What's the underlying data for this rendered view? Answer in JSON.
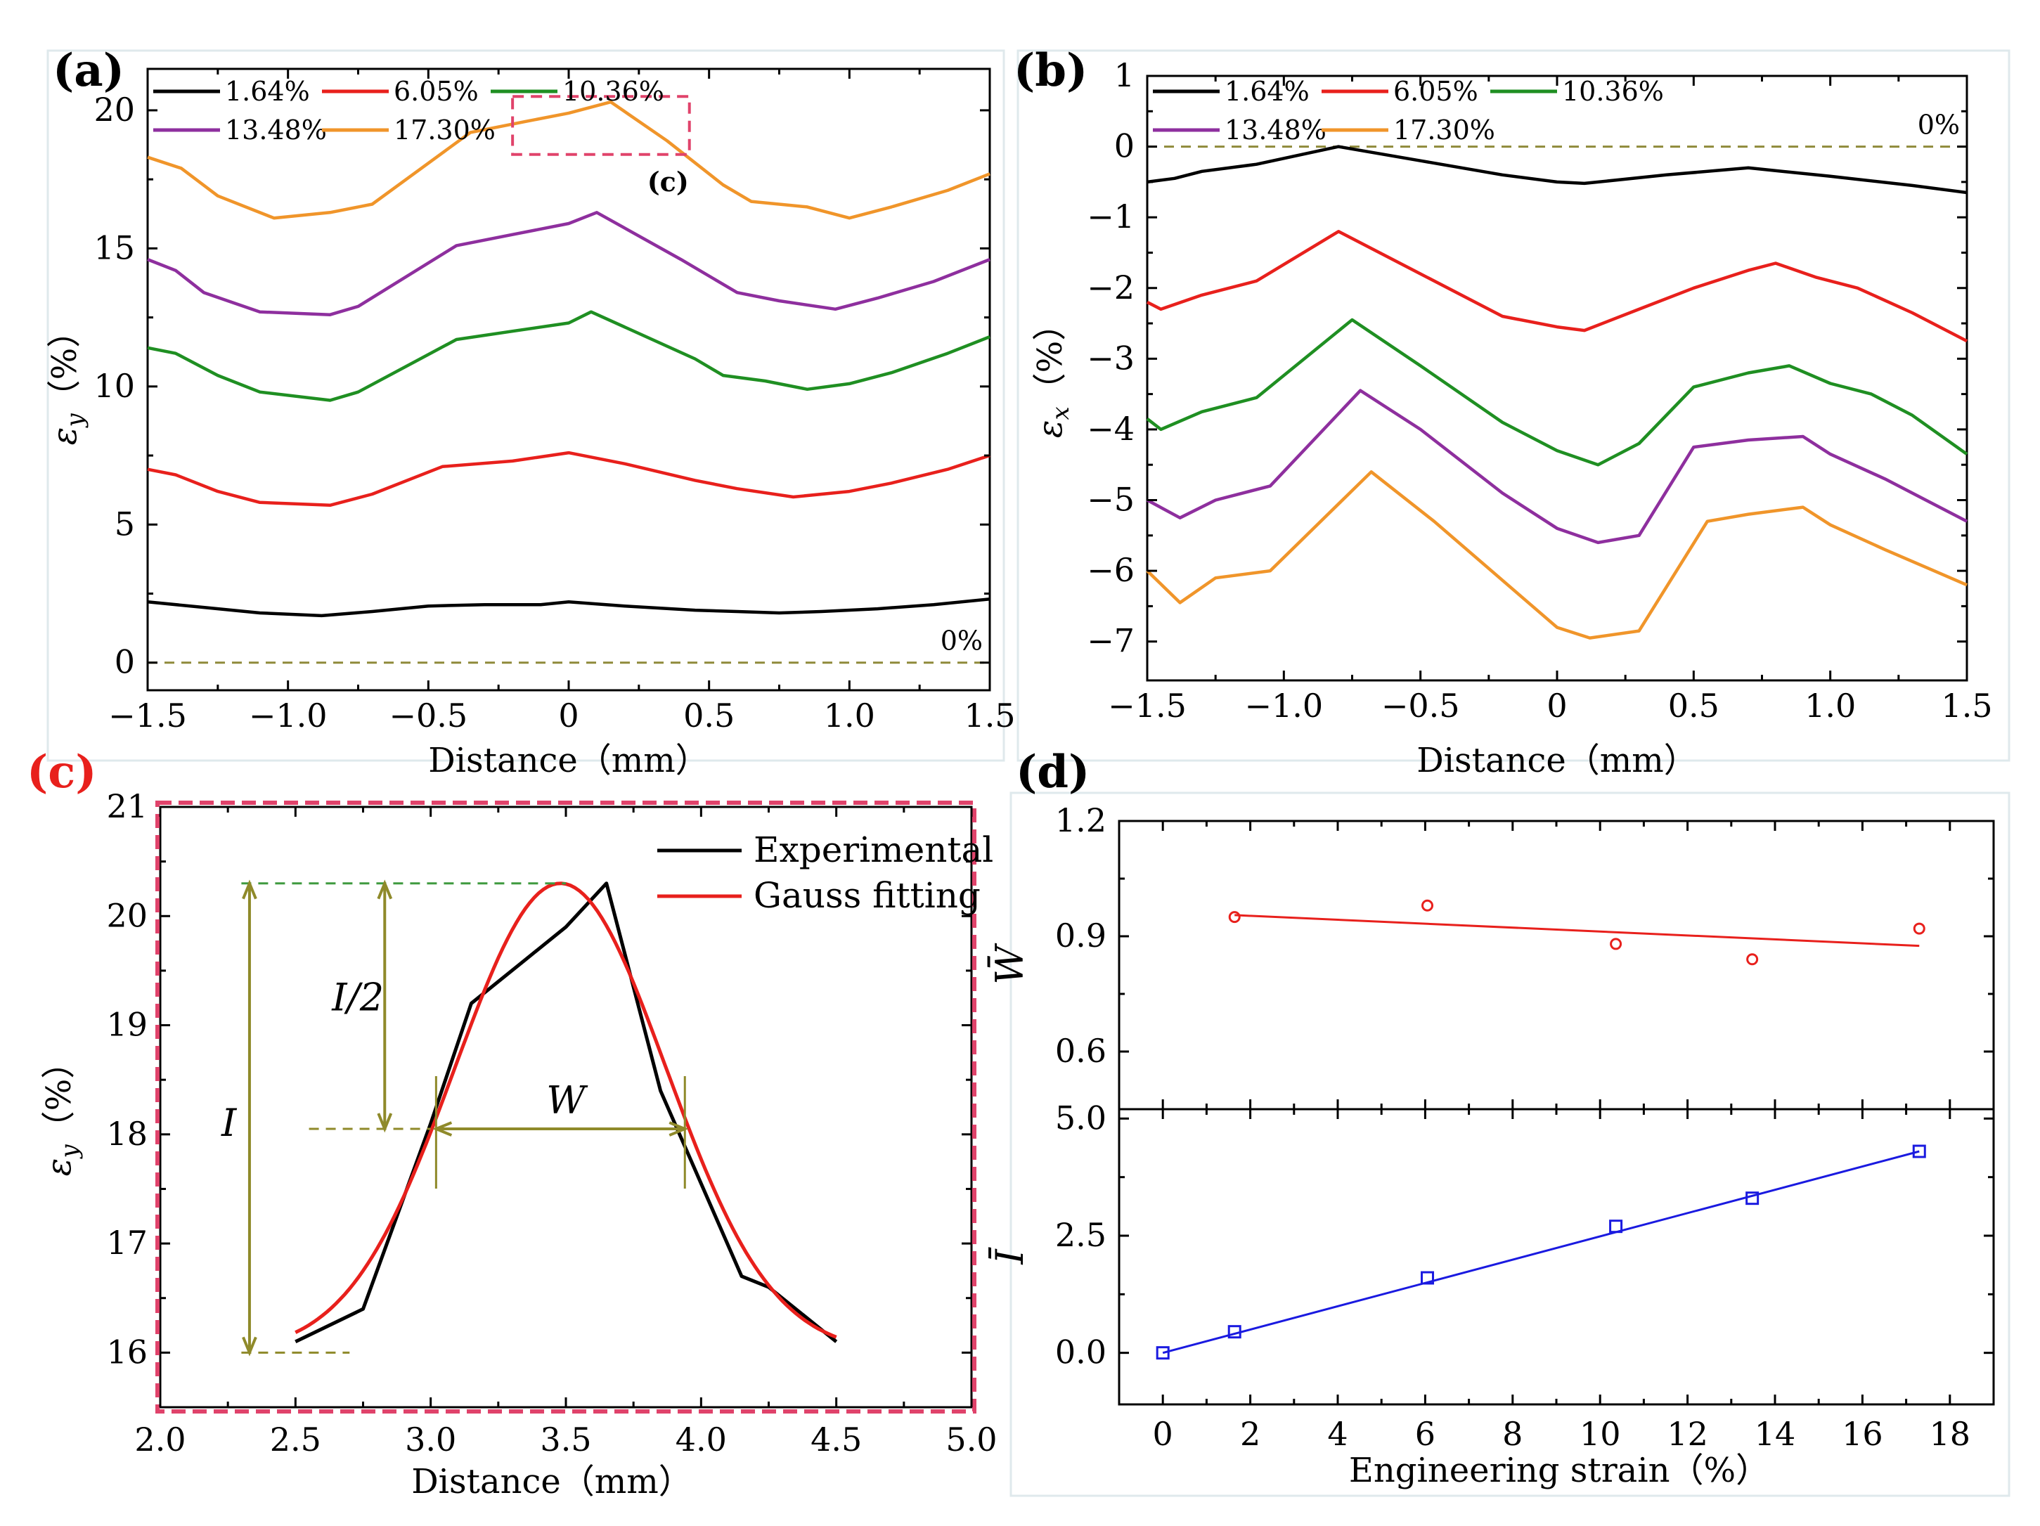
{
  "panels": {
    "a": {
      "label": "(a)"
    },
    "b": {
      "label": "(b)"
    },
    "c": {
      "label": "(c)"
    },
    "d": {
      "label": "(d)"
    }
  },
  "colors": {
    "s1": "#000000",
    "s2": "#e8201c",
    "s3": "#1f8f22",
    "s4": "#8e2f9e",
    "s5": "#f0952a",
    "zero_line": "#8f8a3a",
    "dashed_box": "#e0436b",
    "gauss": "#e8201c",
    "annotation": "#8f8a2a",
    "fit_w": "#e8201c",
    "fit_i": "#1a1ae0"
  },
  "chart_data": [
    {
      "id": "a",
      "type": "line",
      "xlabel": "Distance（mm）",
      "ylabel": "ε_y（%）",
      "xlim": [
        -1.5,
        1.5
      ],
      "ylim": [
        -1,
        21.5
      ],
      "xticks": [
        -1.5,
        -1.0,
        -0.5,
        0,
        0.5,
        1.0,
        1.5
      ],
      "xtick_labels": [
        "−1.5",
        "−1.0",
        "−0.5",
        "0",
        "0.5",
        "1.0",
        "1.5"
      ],
      "yticks": [
        0,
        5,
        10,
        15,
        20
      ],
      "ytick_labels": [
        "0",
        "5",
        "10",
        "15",
        "20"
      ],
      "reference_line": {
        "y": 0,
        "label": "0%"
      },
      "highlight_box": {
        "x": [
          -0.2,
          0.43
        ],
        "y": [
          18.4,
          20.5
        ],
        "label": "(c)"
      },
      "series": [
        {
          "name": "1.64%",
          "color_key": "s1",
          "x": [
            -1.5,
            -1.3,
            -1.1,
            -0.88,
            -0.7,
            -0.5,
            -0.3,
            -0.1,
            0,
            0.2,
            0.45,
            0.6,
            0.75,
            0.9,
            1.1,
            1.3,
            1.5
          ],
          "y": [
            2.2,
            2.0,
            1.8,
            1.7,
            1.85,
            2.05,
            2.1,
            2.1,
            2.2,
            2.05,
            1.9,
            1.85,
            1.8,
            1.85,
            1.95,
            2.1,
            2.3
          ]
        },
        {
          "name": "6.05%",
          "color_key": "s2",
          "x": [
            -1.5,
            -1.4,
            -1.25,
            -1.1,
            -0.85,
            -0.7,
            -0.45,
            -0.2,
            0,
            0.2,
            0.45,
            0.6,
            0.8,
            1.0,
            1.15,
            1.35,
            1.5
          ],
          "y": [
            7.0,
            6.8,
            6.2,
            5.8,
            5.7,
            6.1,
            7.1,
            7.3,
            7.6,
            7.2,
            6.6,
            6.3,
            6.0,
            6.2,
            6.5,
            7.0,
            7.5
          ]
        },
        {
          "name": "10.36%",
          "color_key": "s3",
          "x": [
            -1.5,
            -1.4,
            -1.25,
            -1.1,
            -0.85,
            -0.75,
            -0.4,
            -0.2,
            0,
            0.08,
            0.45,
            0.55,
            0.7,
            0.85,
            1.0,
            1.15,
            1.35,
            1.5
          ],
          "y": [
            11.4,
            11.2,
            10.4,
            9.8,
            9.5,
            9.8,
            11.7,
            12.0,
            12.3,
            12.7,
            11.0,
            10.4,
            10.2,
            9.9,
            10.1,
            10.5,
            11.2,
            11.8
          ]
        },
        {
          "name": "13.48%",
          "color_key": "s4",
          "x": [
            -1.5,
            -1.4,
            -1.3,
            -1.1,
            -0.85,
            -0.75,
            -0.4,
            -0.2,
            0,
            0.1,
            0.4,
            0.6,
            0.75,
            0.95,
            1.1,
            1.3,
            1.5
          ],
          "y": [
            14.6,
            14.2,
            13.4,
            12.7,
            12.6,
            12.9,
            15.1,
            15.5,
            15.9,
            16.3,
            14.6,
            13.4,
            13.1,
            12.8,
            13.2,
            13.8,
            14.6
          ]
        },
        {
          "name": "17.30%",
          "color_key": "s5",
          "x": [
            -1.5,
            -1.38,
            -1.25,
            -1.05,
            -0.85,
            -0.7,
            -0.35,
            -0.15,
            0,
            0.15,
            0.35,
            0.55,
            0.65,
            0.85,
            1.0,
            1.15,
            1.35,
            1.5
          ],
          "y": [
            18.3,
            17.9,
            16.9,
            16.1,
            16.3,
            16.6,
            19.2,
            19.6,
            19.9,
            20.3,
            18.9,
            17.3,
            16.7,
            16.5,
            16.1,
            16.5,
            17.1,
            17.7
          ]
        }
      ]
    },
    {
      "id": "b",
      "type": "line",
      "xlabel": "Distance（mm）",
      "ylabel": "ε_x（%）",
      "xlim": [
        -1.5,
        1.5
      ],
      "ylim": [
        -7.55,
        1
      ],
      "xticks": [
        -1.5,
        -1.0,
        -0.5,
        0,
        0.5,
        1.0,
        1.5
      ],
      "xtick_labels": [
        "−1.5",
        "−1.0",
        "−0.5",
        "0",
        "0.5",
        "1.0",
        "1.5"
      ],
      "yticks": [
        1,
        0,
        -1,
        -2,
        -3,
        -4,
        -5,
        -6,
        -7
      ],
      "ytick_labels": [
        "1",
        "0",
        "−1",
        "−2",
        "−3",
        "−4",
        "−5",
        "−6",
        "−7"
      ],
      "reference_line": {
        "y": 0,
        "label": "0%"
      },
      "series": [
        {
          "name": "1.64%",
          "color_key": "s1",
          "x": [
            -1.5,
            -1.4,
            -1.3,
            -1.1,
            -0.8,
            -0.5,
            -0.2,
            0,
            0.1,
            0.4,
            0.7,
            1.0,
            1.3,
            1.5
          ],
          "y": [
            -0.5,
            -0.45,
            -0.35,
            -0.25,
            0.0,
            -0.2,
            -0.4,
            -0.5,
            -0.52,
            -0.4,
            -0.3,
            -0.42,
            -0.55,
            -0.65
          ]
        },
        {
          "name": "6.05%",
          "color_key": "s2",
          "x": [
            -1.5,
            -1.45,
            -1.3,
            -1.1,
            -0.8,
            -0.5,
            -0.2,
            0,
            0.1,
            0.3,
            0.5,
            0.7,
            0.8,
            0.95,
            1.1,
            1.3,
            1.5
          ],
          "y": [
            -2.2,
            -2.3,
            -2.1,
            -1.9,
            -1.2,
            -1.8,
            -2.4,
            -2.55,
            -2.6,
            -2.3,
            -2.0,
            -1.75,
            -1.65,
            -1.85,
            -2.0,
            -2.35,
            -2.75
          ]
        },
        {
          "name": "10.36%",
          "color_key": "s3",
          "x": [
            -1.5,
            -1.45,
            -1.3,
            -1.1,
            -0.75,
            -0.5,
            -0.2,
            0,
            0.15,
            0.3,
            0.5,
            0.7,
            0.85,
            1.0,
            1.15,
            1.3,
            1.5
          ],
          "y": [
            -3.85,
            -4.0,
            -3.75,
            -3.55,
            -2.45,
            -3.1,
            -3.9,
            -4.3,
            -4.5,
            -4.2,
            -3.4,
            -3.2,
            -3.1,
            -3.35,
            -3.5,
            -3.8,
            -4.35
          ]
        },
        {
          "name": "13.48%",
          "color_key": "s4",
          "x": [
            -1.5,
            -1.38,
            -1.25,
            -1.05,
            -0.72,
            -0.5,
            -0.2,
            0,
            0.15,
            0.3,
            0.5,
            0.7,
            0.9,
            1.0,
            1.2,
            1.35,
            1.5
          ],
          "y": [
            -5.0,
            -5.25,
            -5.0,
            -4.8,
            -3.45,
            -4.0,
            -4.9,
            -5.4,
            -5.6,
            -5.5,
            -4.25,
            -4.15,
            -4.1,
            -4.35,
            -4.7,
            -5.0,
            -5.3
          ]
        },
        {
          "name": "17.30%",
          "color_key": "s5",
          "x": [
            -1.5,
            -1.38,
            -1.25,
            -1.05,
            -0.68,
            -0.45,
            -0.15,
            0,
            0.12,
            0.3,
            0.55,
            0.7,
            0.9,
            1.0,
            1.2,
            1.35,
            1.5
          ],
          "y": [
            -6.0,
            -6.45,
            -6.1,
            -6.0,
            -4.6,
            -5.3,
            -6.3,
            -6.8,
            -6.95,
            -6.85,
            -5.3,
            -5.2,
            -5.1,
            -5.35,
            -5.7,
            -5.95,
            -6.2
          ]
        }
      ]
    },
    {
      "id": "c",
      "type": "line",
      "xlabel": "Distance（mm）",
      "ylabel": "ε_y（%）",
      "xlim": [
        2.0,
        5.0
      ],
      "ylim": [
        15.5,
        21
      ],
      "xticks": [
        2.0,
        2.5,
        3.0,
        3.5,
        4.0,
        4.5,
        5.0
      ],
      "xtick_labels": [
        "2.0",
        "2.5",
        "3.0",
        "3.5",
        "4.0",
        "4.5",
        "5.0"
      ],
      "yticks": [
        16,
        17,
        18,
        19,
        20,
        21
      ],
      "ytick_labels": [
        "16",
        "17",
        "18",
        "19",
        "20",
        "21"
      ],
      "series": [
        {
          "name": "Experimental",
          "color_key": "s1",
          "x": [
            2.5,
            2.75,
            3.0,
            3.15,
            3.35,
            3.5,
            3.65,
            3.85,
            4.15,
            4.25,
            4.5
          ],
          "y": [
            16.1,
            16.4,
            18.1,
            19.2,
            19.6,
            19.9,
            20.3,
            18.4,
            16.7,
            16.6,
            16.1
          ]
        },
        {
          "name": "Gauss fitting",
          "color_key": "gauss",
          "gaussian": {
            "y0": 16.0,
            "amplitude": 4.3,
            "center": 3.48,
            "width_fwhm": 0.92,
            "x_from": 2.5,
            "x_to": 4.5
          }
        }
      ],
      "annotations": {
        "peak_y": 20.3,
        "base_y": 16.0,
        "half_y": 18.05,
        "w_left": 3.02,
        "w_right": 3.94,
        "I_label": "I",
        "half_label": "I/2",
        "W_label": "W"
      }
    },
    {
      "id": "d",
      "type": "scatter",
      "xlabel": "Engineering strain（%）",
      "xlim": [
        -1,
        19
      ],
      "xticks": [
        0,
        2,
        4,
        6,
        8,
        10,
        12,
        14,
        16,
        18
      ],
      "xtick_labels": [
        "0",
        "2",
        "4",
        "6",
        "8",
        "10",
        "12",
        "14",
        "16",
        "18"
      ],
      "subplots": [
        {
          "ylabel": "W̄",
          "ylim": [
            0.45,
            1.2
          ],
          "yticks": [
            0.6,
            0.9,
            1.2
          ],
          "ytick_labels": [
            "0.6",
            "0.9",
            "1.2"
          ],
          "marker": "circle",
          "color_key": "fit_w",
          "x": [
            1.64,
            6.05,
            10.36,
            13.48,
            17.3
          ],
          "y": [
            0.95,
            0.98,
            0.88,
            0.84,
            0.92
          ],
          "fit": {
            "x": [
              1.64,
              17.3
            ],
            "y": [
              0.955,
              0.875
            ]
          }
        },
        {
          "ylabel": "Ī",
          "ylim": [
            -1.1,
            5.2
          ],
          "yticks": [
            0.0,
            2.5,
            5.0
          ],
          "ytick_labels": [
            "0.0",
            "2.5",
            "5.0"
          ],
          "marker": "square",
          "color_key": "fit_i",
          "x": [
            0,
            1.64,
            6.05,
            10.36,
            13.48,
            17.3
          ],
          "y": [
            0.0,
            0.45,
            1.6,
            2.7,
            3.3,
            4.3
          ],
          "fit": {
            "x": [
              0,
              17.3
            ],
            "y": [
              0.0,
              4.3
            ]
          }
        }
      ]
    }
  ]
}
